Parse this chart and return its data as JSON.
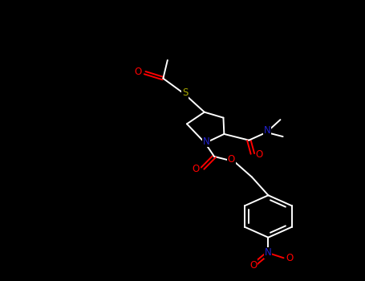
{
  "background_color": "#000000",
  "bond_color": "#ffffff",
  "atom_colors": {
    "O": "#ff0000",
    "N": "#2222cc",
    "S": "#aaaa00",
    "C": "#ffffff"
  },
  "figsize": [
    4.55,
    3.5
  ],
  "dpi": 100
}
